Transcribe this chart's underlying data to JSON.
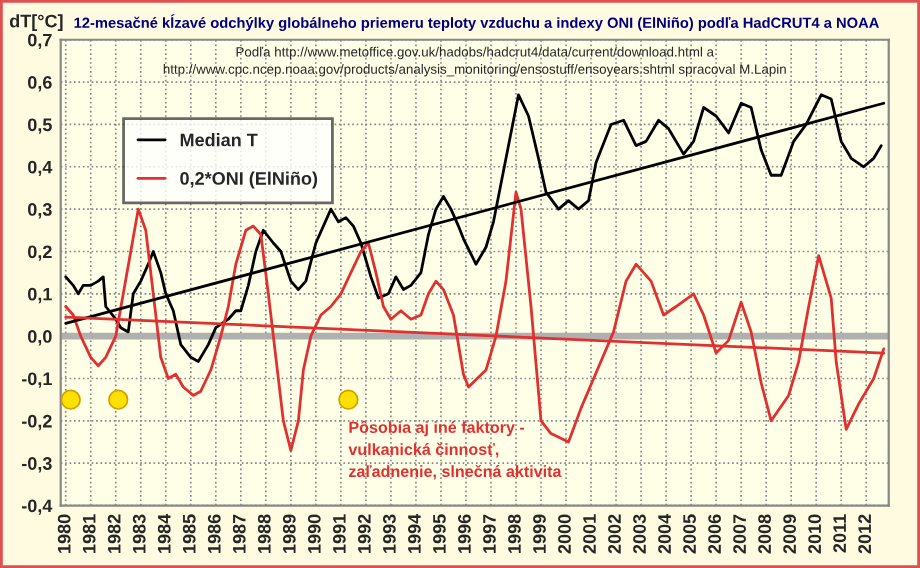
{
  "chart_data": {
    "type": "line",
    "title": "12-mesačné kĺzavé odchýlky globálneho priemeru teploty vzduchu a indexy ONI (ElNiño) podľa HadCRUT4 a NOAA",
    "ylabel": "dT[°C]",
    "annotations": [
      "Podľa http://www.metoffice.gov.uk/hadobs/hadcrut4/data/current/download.html a\nhttp://www.cpc.ncep.noaa.gov/products/analysis_monitoring/ensostuff/ensoyears.shtml spracoval M.Lapin",
      "Pôsobia aj iné faktory -\nvulkanická činnosť,\nzaľadnenie, slnečná aktivita"
    ],
    "series": [
      {
        "name": "Median T",
        "color": "#000000",
        "x": [
          1980.0,
          1980.3,
          1980.5,
          1980.7,
          1981.0,
          1981.3,
          1981.5,
          1981.6,
          1982.0,
          1982.2,
          1982.5,
          1982.7,
          1983.0,
          1983.3,
          1983.5,
          1983.8,
          1984.0,
          1984.3,
          1984.6,
          1985.0,
          1985.3,
          1985.7,
          1986.0,
          1986.5,
          1986.8,
          1987.0,
          1987.3,
          1987.6,
          1987.9,
          1988.3,
          1988.6,
          1989.0,
          1989.3,
          1989.6,
          1990.0,
          1990.3,
          1990.6,
          1990.9,
          1991.2,
          1991.5,
          1991.8,
          1992.2,
          1992.5,
          1992.9,
          1993.2,
          1993.5,
          1993.8,
          1994.2,
          1994.5,
          1994.8,
          1995.1,
          1995.4,
          1995.7,
          1995.9,
          1996.4,
          1996.8,
          1997.1,
          1997.6,
          1998.1,
          1998.5,
          1998.9,
          1999.2,
          1999.7,
          2000.1,
          2000.5,
          2000.9,
          2001.2,
          2001.8,
          2002.3,
          2002.8,
          2003.2,
          2003.7,
          2004.1,
          2004.7,
          2005.1,
          2005.5,
          2006.0,
          2006.5,
          2007.0,
          2007.4,
          2007.8,
          2008.2,
          2008.6,
          2009.1,
          2009.6,
          2010.2,
          2010.6,
          2011.0,
          2011.4,
          2011.9,
          2012.3,
          2012.6
        ],
        "values": [
          0.14,
          0.12,
          0.1,
          0.12,
          0.12,
          0.13,
          0.14,
          0.07,
          0.04,
          0.02,
          0.01,
          0.1,
          0.13,
          0.17,
          0.2,
          0.15,
          0.1,
          0.06,
          -0.02,
          -0.05,
          -0.06,
          -0.02,
          0.02,
          0.04,
          0.06,
          0.06,
          0.12,
          0.2,
          0.25,
          0.22,
          0.2,
          0.13,
          0.11,
          0.13,
          0.22,
          0.26,
          0.3,
          0.27,
          0.28,
          0.26,
          0.22,
          0.14,
          0.09,
          0.1,
          0.14,
          0.11,
          0.12,
          0.15,
          0.24,
          0.3,
          0.33,
          0.3,
          0.26,
          0.23,
          0.17,
          0.21,
          0.27,
          0.42,
          0.57,
          0.52,
          0.42,
          0.34,
          0.3,
          0.32,
          0.3,
          0.32,
          0.41,
          0.5,
          0.51,
          0.45,
          0.46,
          0.51,
          0.49,
          0.43,
          0.46,
          0.54,
          0.52,
          0.48,
          0.55,
          0.54,
          0.44,
          0.38,
          0.38,
          0.46,
          0.5,
          0.57,
          0.56,
          0.46,
          0.42,
          0.4,
          0.42,
          0.45
        ]
      },
      {
        "name": "0,2*ONI (ElNiño)",
        "color": "#e03030",
        "x": [
          1980.0,
          1980.3,
          1980.6,
          1981.0,
          1981.3,
          1981.6,
          1982.0,
          1982.3,
          1982.6,
          1982.9,
          1983.2,
          1983.5,
          1983.8,
          1984.1,
          1984.4,
          1984.7,
          1985.1,
          1985.4,
          1985.8,
          1986.2,
          1986.5,
          1986.8,
          1987.2,
          1987.5,
          1987.8,
          1988.1,
          1988.4,
          1988.7,
          1989.0,
          1989.3,
          1989.5,
          1989.8,
          1990.2,
          1990.6,
          1991.0,
          1991.4,
          1991.8,
          1992.1,
          1992.4,
          1992.7,
          1993.0,
          1993.4,
          1993.8,
          1994.2,
          1994.5,
          1994.8,
          1995.1,
          1995.5,
          1995.9,
          1996.1,
          1996.8,
          1997.2,
          1997.6,
          1998.0,
          1998.2,
          1998.6,
          1999.0,
          1999.4,
          2000.1,
          2000.6,
          2001.25,
          2001.9,
          2002.4,
          2002.8,
          2003.4,
          2003.9,
          2004.4,
          2005.1,
          2005.5,
          2006.0,
          2006.5,
          2007.0,
          2007.4,
          2007.8,
          2008.2,
          2008.9,
          2009.3,
          2009.7,
          2010.1,
          2010.6,
          2010.8,
          2011.2,
          2011.7,
          2012.3,
          2012.7
        ],
        "values": [
          0.07,
          0.05,
          0.0,
          -0.05,
          -0.07,
          -0.05,
          0.0,
          0.1,
          0.2,
          0.3,
          0.25,
          0.1,
          -0.05,
          -0.1,
          -0.09,
          -0.12,
          -0.14,
          -0.13,
          -0.08,
          0.0,
          0.07,
          0.17,
          0.25,
          0.26,
          0.24,
          0.1,
          -0.05,
          -0.2,
          -0.27,
          -0.2,
          -0.08,
          0.0,
          0.05,
          0.07,
          0.1,
          0.15,
          0.2,
          0.22,
          0.15,
          0.07,
          0.04,
          0.06,
          0.04,
          0.05,
          0.1,
          0.13,
          0.11,
          0.05,
          -0.09,
          -0.12,
          -0.08,
          0.0,
          0.13,
          0.34,
          0.3,
          0.07,
          -0.2,
          -0.23,
          -0.25,
          -0.17,
          -0.08,
          0.01,
          0.13,
          0.17,
          0.13,
          0.05,
          0.07,
          0.1,
          0.05,
          -0.04,
          -0.01,
          0.08,
          0.01,
          -0.11,
          -0.2,
          -0.14,
          -0.06,
          0.07,
          0.19,
          0.09,
          -0.06,
          -0.22,
          -0.16,
          -0.1,
          -0.03
        ]
      },
      {
        "type": "line",
        "color": "#000000",
        "x": [
          1980.0,
          2012.7
        ],
        "values": [
          0.03,
          0.55
        ]
      },
      {
        "type": "line",
        "color": "#e03030",
        "x": [
          1980.0,
          2012.7
        ],
        "values": [
          0.045,
          -0.04
        ]
      },
      {
        "type": "scatter",
        "color": "#ffe000",
        "marker": "circle",
        "x": [
          1980.2,
          1982.1,
          1991.3
        ],
        "values": [
          -0.15,
          -0.15,
          -0.15
        ]
      }
    ],
    "xlim": [
      1979.8,
      2012.9
    ],
    "xticks": [
      1980,
      1981,
      1982,
      1983,
      1984,
      1985,
      1986,
      1987,
      1988,
      1989,
      1990,
      1991,
      1992,
      1993,
      1994,
      1995,
      1996,
      1997,
      1998,
      1999,
      2000,
      2001,
      2002,
      2003,
      2004,
      2005,
      2006,
      2007,
      2008,
      2009,
      2010,
      2011,
      2012
    ],
    "ylim": [
      -0.4,
      0.7
    ],
    "yticks": [
      {
        "value": -0.4,
        "label": "-0,4"
      },
      {
        "value": -0.3,
        "label": "-0,3"
      },
      {
        "value": -0.2,
        "label": "-0,2"
      },
      {
        "value": -0.1,
        "label": "-0,1"
      },
      {
        "value": 0.0,
        "label": "0,0"
      },
      {
        "value": 0.1,
        "label": "0,1"
      },
      {
        "value": 0.2,
        "label": "0,2"
      },
      {
        "value": 0.3,
        "label": "0,3"
      },
      {
        "value": 0.4,
        "label": "0,4"
      },
      {
        "value": 0.5,
        "label": "0,5"
      },
      {
        "value": 0.6,
        "label": "0,6"
      },
      {
        "value": 0.7,
        "label": "0,7"
      }
    ],
    "ref_lines": [
      {
        "axis": "y",
        "value": 0.0,
        "color": "#b0b0b0"
      }
    ],
    "grid": true,
    "legend": "top left",
    "line_style": "solid"
  }
}
